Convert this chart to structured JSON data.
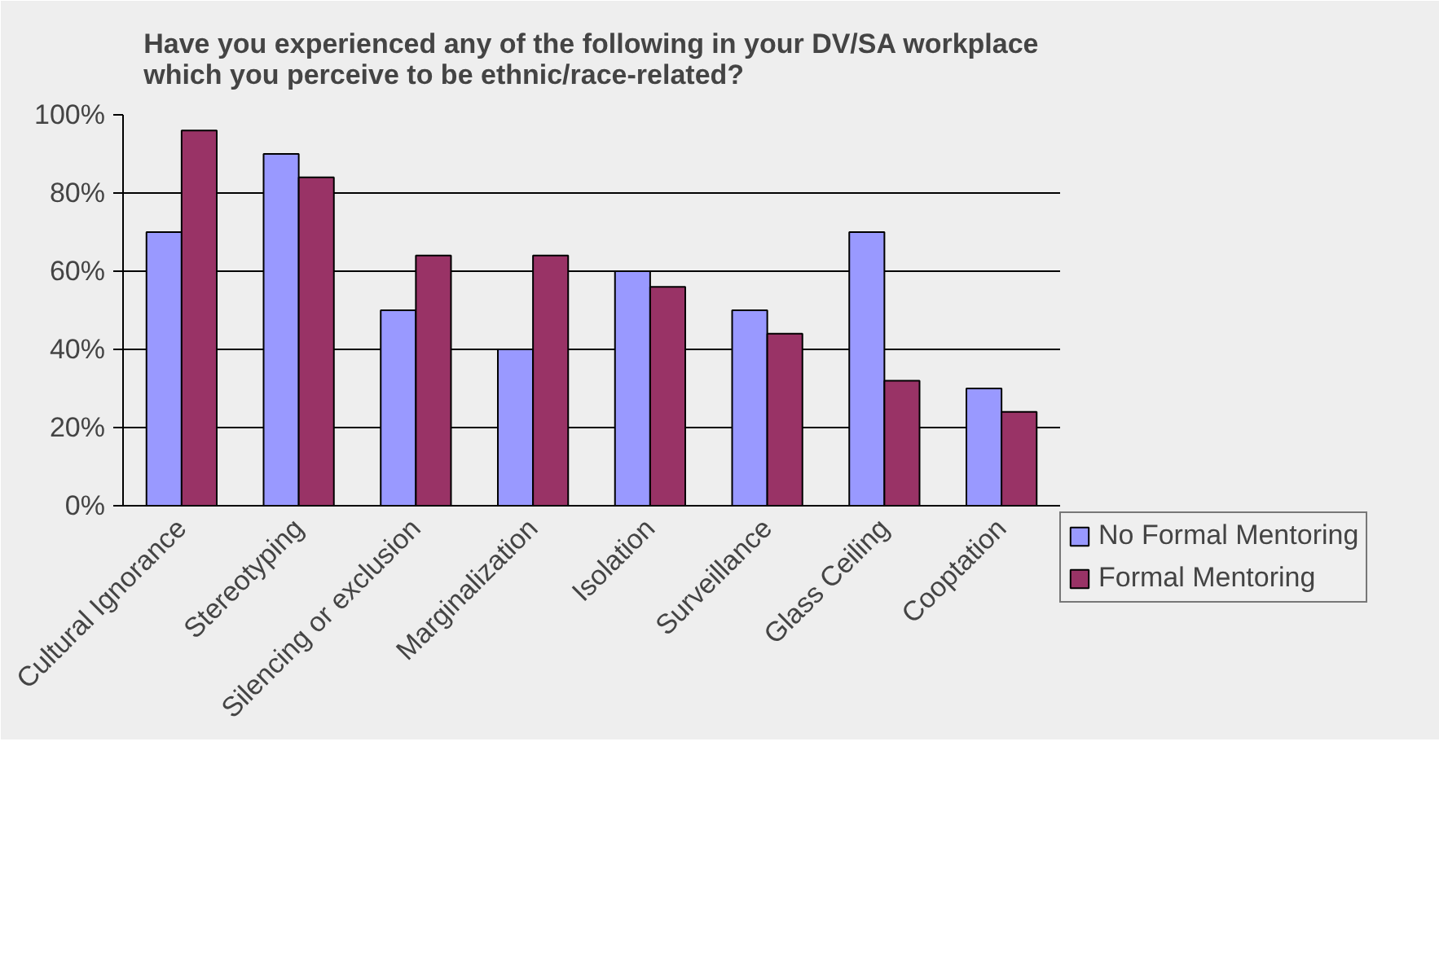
{
  "chart_data": {
    "type": "bar",
    "title": "Have you experienced any of the following in your DV/SA workplace\nwhich you perceive to be ethnic/race-related?",
    "categories": [
      "Cultural Ignorance",
      "Stereotyping",
      "Silencing or exclusion",
      "Marginalization",
      "Isolation",
      "Surveillance",
      "Glass Ceiling",
      "Cooptation"
    ],
    "series": [
      {
        "name": "No Formal Mentoring",
        "color": "#9999ff",
        "values": [
          70,
          90,
          50,
          40,
          60,
          50,
          70,
          30
        ]
      },
      {
        "name": "Formal Mentoring",
        "color": "#993366",
        "values": [
          96,
          84,
          64,
          64,
          56,
          44,
          32,
          24
        ]
      }
    ],
    "ylim": [
      0,
      100
    ],
    "yticks": [
      {
        "value": 0,
        "label": "0%"
      },
      {
        "value": 20,
        "label": "20%"
      },
      {
        "value": 40,
        "label": "40%"
      },
      {
        "value": 60,
        "label": "60%"
      },
      {
        "value": 80,
        "label": "80%"
      },
      {
        "value": 100,
        "label": "100%"
      }
    ],
    "grid": "y",
    "legend": "right"
  }
}
